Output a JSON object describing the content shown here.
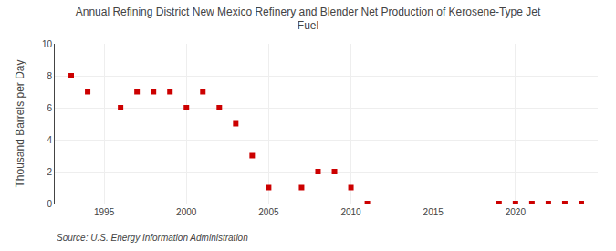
{
  "chart_data": {
    "type": "scatter",
    "title": "Annual Refining District New Mexico Refinery and Blender Net Production of Kerosene-Type Jet\nFuel",
    "ylabel": "Thousand Barrels per Day",
    "source": "Source: U.S. Energy Information Administration",
    "x": [
      1993,
      1994,
      1996,
      1997,
      1998,
      1999,
      2000,
      2001,
      2002,
      2003,
      2004,
      2005,
      2007,
      2008,
      2009,
      2010,
      2011,
      2019,
      2020,
      2021,
      2022,
      2023,
      2024
    ],
    "values": [
      8,
      7,
      6,
      7,
      7,
      7,
      6,
      7,
      6,
      5,
      3,
      1,
      1,
      2,
      2,
      1,
      0,
      0,
      0,
      0,
      0,
      0,
      0
    ],
    "color": "#cc0000",
    "marker": "square",
    "xlim": [
      1992,
      2025
    ],
    "xticks": [
      1995,
      2000,
      2005,
      2010,
      2015,
      2020
    ],
    "ylim": [
      0,
      10
    ],
    "yticks": [
      0,
      2,
      4,
      6,
      8,
      10
    ],
    "grid": true
  }
}
